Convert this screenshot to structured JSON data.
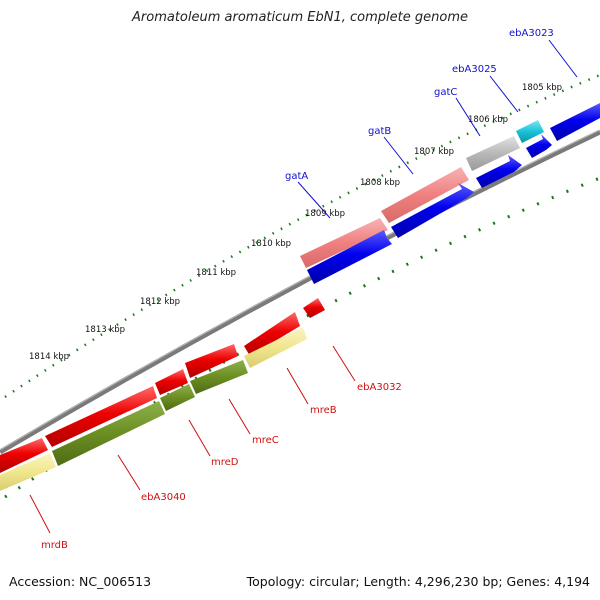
{
  "title": "Aromatoleum aromaticum EbN1, complete genome",
  "footer": {
    "accession": "Accession: NC_006513",
    "topology": "Topology: circular; Length: 4,296,230 bp; Genes: 4,194"
  },
  "ruler_labels": [
    "1805 kbp",
    "1806 kbp",
    "1807 kbp",
    "1808 kbp",
    "1809 kbp",
    "1810 kbp",
    "1811 kbp",
    "1812 kbp",
    "1813 kbp",
    "1814 kbp"
  ],
  "top_genes": [
    {
      "name": "ebA3023",
      "color": "#1010d0"
    },
    {
      "name": "ebA3025",
      "color": "#1010d0"
    },
    {
      "name": "gatC",
      "color": "#1010d0"
    },
    {
      "name": "gatB",
      "color": "#1010d0"
    },
    {
      "name": "gatA",
      "color": "#1010d0"
    }
  ],
  "bottom_genes": [
    {
      "name": "ebA3032",
      "color": "#d01010"
    },
    {
      "name": "mreB",
      "color": "#d01010"
    },
    {
      "name": "mreC",
      "color": "#d01010"
    },
    {
      "name": "mreD",
      "color": "#d01010"
    },
    {
      "name": "ebA3040",
      "color": "#d01010"
    },
    {
      "name": "mrdB",
      "color": "#d01010"
    }
  ],
  "colors": {
    "forward_cds": "#0000ee",
    "reverse_cds": "#ee0000",
    "backbone": "#808080",
    "ticks": "#1a7a1a",
    "rna_pink": "#f08080",
    "gray_feature": "#b8b8b8",
    "cyan_feature": "#19c3d9",
    "olive_feature": "#6b8e23",
    "khaki_feature": "#f0e68c"
  }
}
